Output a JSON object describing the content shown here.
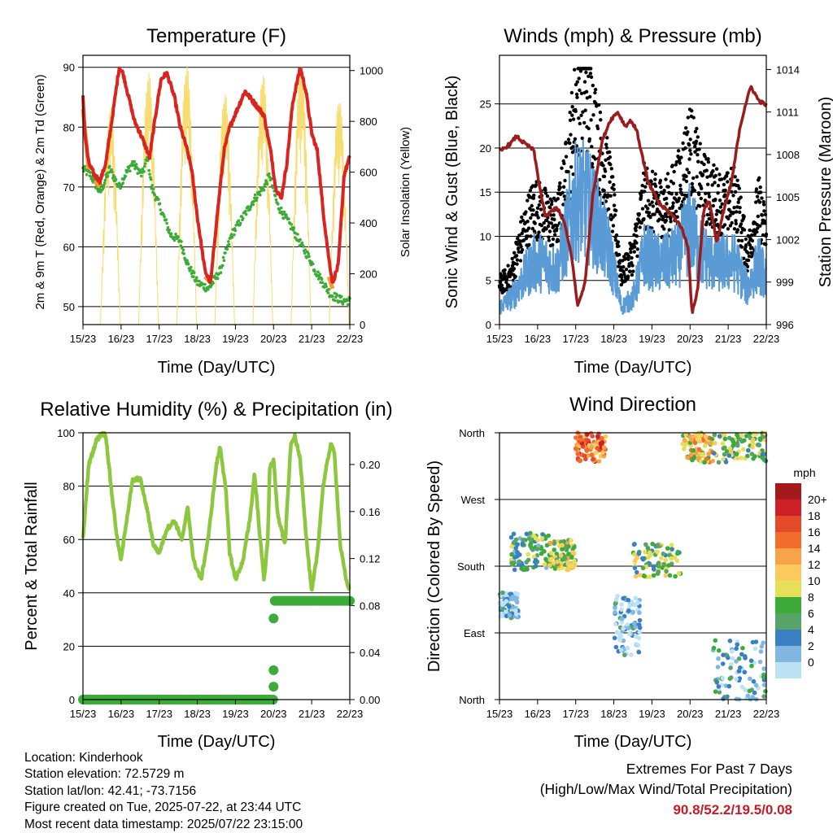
{
  "shared": {
    "x_ticks": [
      "15/23",
      "16/23",
      "17/23",
      "18/23",
      "19/23",
      "20/23",
      "21/23",
      "22/23"
    ],
    "xlabel": "Time (Day/UTC)"
  },
  "chart_data": [
    {
      "type": "line",
      "title": "Temperature (F)",
      "ylabel": "2m & 9m T (Red, Orange) & 2m Td (Green)",
      "y2label": "Solar Insolation (Yellow)",
      "xlabel": "Time (Day/UTC)",
      "x": [
        "15/23",
        "16/23",
        "17/23",
        "18/23",
        "19/23",
        "20/23",
        "21/23",
        "22/23"
      ],
      "ylim": [
        47,
        92
      ],
      "y2lim": [
        0,
        1060
      ],
      "yticks": [
        50,
        60,
        70,
        80,
        90
      ],
      "y2ticks": [
        0,
        200,
        400,
        600,
        800,
        1000
      ],
      "series": [
        {
          "axis": "left",
          "color": "#d8251f",
          "style": "thick-line",
          "x": [
            0,
            0.05,
            0.15,
            0.3,
            0.45,
            0.6,
            0.8,
            0.95,
            1.05,
            1.2,
            1.35,
            1.5,
            1.75,
            1.95,
            2.05,
            2.2,
            2.4,
            2.55,
            2.7,
            2.85,
            3,
            3.2,
            3.35,
            3.5,
            3.7,
            3.85,
            4.05,
            4.25,
            4.5,
            4.75,
            4.95,
            5.05,
            5.2,
            5.35,
            5.5,
            5.7,
            5.85,
            6,
            6.15,
            6.3,
            6.45,
            6.55,
            6.7,
            6.85,
            7
          ],
          "values": [
            85,
            79,
            74,
            72,
            71,
            74,
            83,
            90,
            89,
            85,
            81,
            79,
            75,
            84,
            88,
            89,
            85,
            80,
            77,
            73,
            65,
            56,
            54,
            64,
            76,
            80,
            83,
            86,
            84,
            82,
            75,
            70,
            68,
            74,
            84,
            90,
            86,
            79,
            76,
            66,
            58,
            54,
            57,
            72,
            75
          ]
        },
        {
          "axis": "left",
          "color": "#f39a2e",
          "style": "thick-line",
          "x": [
            0,
            0.15,
            0.3,
            0.45,
            3.2,
            3.35,
            6.45,
            6.55
          ],
          "values": [
            83,
            73,
            71,
            70,
            55,
            54,
            55,
            53
          ]
        },
        {
          "axis": "left",
          "color": "#3cab3a",
          "style": "dots",
          "x": [
            0,
            0.2,
            0.45,
            0.7,
            0.95,
            1.1,
            1.3,
            1.55,
            1.7,
            1.8,
            2.0,
            2.3,
            2.55,
            2.75,
            3.0,
            3.3,
            3.6,
            3.9,
            4.2,
            4.5,
            4.75,
            4.9,
            5.1,
            5.3,
            5.5,
            5.75,
            5.95,
            6.1,
            6.3,
            6.5,
            6.8,
            7
          ],
          "values": [
            73,
            72,
            69,
            73,
            70,
            72,
            74,
            72,
            75,
            70,
            67,
            62,
            61,
            57,
            54,
            53,
            56,
            62,
            65,
            68,
            70,
            72,
            67,
            65,
            63,
            60,
            58,
            56,
            54,
            52,
            51,
            51
          ]
        },
        {
          "axis": "right",
          "color": "#f7dc6f",
          "style": "daily-peaks",
          "peak_x": [
            0.72,
            1.72,
            2.72,
            3.72,
            4.72,
            5.72,
            6.72
          ],
          "peak_values": [
            860,
            1000,
            1030,
            920,
            1000,
            1040,
            900
          ]
        }
      ]
    },
    {
      "type": "scatter",
      "title": "Winds (mph) & Pressure (mb)",
      "ylabel": "Sonic Wind & Gust (Blue, Black)",
      "y2label": "Station Pressure (Maroon)",
      "xlabel": "Time (Day/UTC)",
      "x": [
        "15/23",
        "16/23",
        "17/23",
        "18/23",
        "19/23",
        "20/23",
        "21/23",
        "22/23"
      ],
      "ylim": [
        0,
        30.5
      ],
      "y2lim": [
        996,
        1015
      ],
      "yticks": [
        0,
        5,
        10,
        15,
        20,
        25
      ],
      "y2ticks": [
        996,
        999,
        1002,
        1005,
        1008,
        1011,
        1014
      ],
      "series": [
        {
          "axis": "left",
          "color": "#000000",
          "style": "dots",
          "x": [
            0,
            0.3,
            0.6,
            0.9,
            1.2,
            1.5,
            1.8,
            2.0,
            2.2,
            2.4,
            2.6,
            2.9,
            3.2,
            3.5,
            3.8,
            4.1,
            4.4,
            4.7,
            5.0,
            5.3,
            5.6,
            5.9,
            6.2,
            6.5,
            6.8,
            7
          ],
          "values": [
            4,
            5,
            9,
            12,
            11,
            10,
            16,
            22,
            25,
            22,
            18,
            14,
            5,
            7,
            13,
            12,
            12,
            14,
            18,
            14,
            13,
            12,
            13,
            7,
            12,
            9
          ]
        },
        {
          "axis": "left",
          "color": "#5a9bd5",
          "style": "filled-line",
          "x": [
            0,
            0.3,
            0.6,
            0.9,
            1.2,
            1.5,
            1.8,
            2.0,
            2.2,
            2.4,
            2.6,
            2.9,
            3.2,
            3.5,
            3.8,
            4.1,
            4.4,
            4.7,
            5.0,
            5.3,
            5.6,
            5.9,
            6.2,
            6.5,
            6.8,
            7
          ],
          "values": [
            2,
            3,
            5,
            7,
            7,
            6,
            11,
            14,
            14,
            13,
            11,
            8,
            2,
            3,
            8,
            7,
            7,
            8,
            11,
            8,
            7,
            7,
            7,
            4,
            7,
            5
          ]
        },
        {
          "axis": "right",
          "color": "#9b1c1c",
          "style": "thick-line",
          "x": [
            0,
            0.3,
            0.45,
            0.6,
            0.9,
            1.05,
            1.2,
            1.5,
            1.7,
            1.9,
            2.05,
            2.25,
            2.45,
            2.7,
            2.9,
            3.1,
            3.3,
            3.45,
            3.6,
            3.9,
            4.2,
            4.5,
            4.75,
            4.95,
            5.05,
            5.2,
            5.35,
            5.5,
            5.7,
            5.9,
            6.1,
            6.3,
            6.45,
            6.6,
            6.8,
            7
          ],
          "values": [
            1008.2,
            1008.8,
            1009.3,
            1008.9,
            1008.3,
            1005.8,
            1003.6,
            1004.3,
            1003.2,
            1000.7,
            997.3,
            999,
            1005.2,
            1009,
            1010.4,
            1011,
            1010,
            1010.4,
            1009.7,
            1006,
            1004.5,
            1003.8,
            1003,
            1001.5,
            996.7,
            998.5,
            1004,
            1004.8,
            1001.8,
            1004.2,
            1006.2,
            1009.8,
            1011.5,
            1012.8,
            1011.8,
            1011.5
          ]
        }
      ]
    },
    {
      "type": "line",
      "title": "Relative Humidity (%) & Precipitation (in)",
      "ylabel": "Percent & Total Rainfall",
      "xlabel": "Time (Day/UTC)",
      "x": [
        "15/23",
        "16/23",
        "17/23",
        "18/23",
        "19/23",
        "20/23",
        "21/23",
        "22/23"
      ],
      "ylim": [
        0,
        100
      ],
      "y2lim": [
        0,
        0.227
      ],
      "yticks": [
        0,
        20,
        40,
        60,
        80,
        100
      ],
      "y2ticks": [
        0.0,
        0.04,
        0.08,
        0.12,
        0.16,
        0.2
      ],
      "series": [
        {
          "axis": "left",
          "color": "#8dc63f",
          "style": "thick-line",
          "x": [
            0,
            0.15,
            0.35,
            0.5,
            0.6,
            0.75,
            0.9,
            1.0,
            1.1,
            1.3,
            1.5,
            1.7,
            1.85,
            2.0,
            2.2,
            2.4,
            2.6,
            2.75,
            2.9,
            3.1,
            3.3,
            3.5,
            3.6,
            3.75,
            3.85,
            4.0,
            4.2,
            4.4,
            4.5,
            4.65,
            4.75,
            4.85,
            4.9,
            5.0,
            5.1,
            5.3,
            5.45,
            5.55,
            5.7,
            5.85,
            6.0,
            6.15,
            6.3,
            6.5,
            6.6,
            6.75,
            6.9,
            7
          ],
          "values": [
            60,
            88,
            97,
            100,
            99,
            78,
            60,
            52,
            63,
            82,
            83,
            70,
            58,
            55,
            64,
            67,
            60,
            72,
            52,
            45,
            62,
            88,
            95,
            78,
            55,
            45,
            52,
            70,
            85,
            60,
            45,
            60,
            87,
            90,
            70,
            58,
            95,
            99,
            90,
            62,
            40,
            55,
            80,
            96,
            92,
            58,
            45,
            41
          ]
        },
        {
          "axis": "right",
          "color": "#3cab3a",
          "style": "dots",
          "x": [
            0,
            5,
            5.1,
            5.3,
            6,
            7
          ],
          "values": [
            0,
            0,
            0.069,
            0.084,
            0.084,
            0.084
          ]
        }
      ]
    },
    {
      "type": "scatter",
      "title": "Wind Direction",
      "ylabel": "Direction (Colored By Speed)",
      "xlabel": "Time (Day/UTC)",
      "x": [
        "15/23",
        "16/23",
        "17/23",
        "18/23",
        "19/23",
        "20/23",
        "21/23",
        "22/23"
      ],
      "yticks": [
        "North",
        "East",
        "South",
        "West",
        "North"
      ],
      "ylim": [
        0,
        360
      ],
      "legend": {
        "title": "mph",
        "labels": [
          "20+",
          "18",
          "16",
          "14",
          "12",
          "10",
          "8",
          "6",
          "4",
          "2",
          "0"
        ],
        "position": "right"
      },
      "clusters": [
        {
          "x": [
            0.0,
            0.5
          ],
          "dir": [
            110,
            145
          ],
          "speed": 2
        },
        {
          "x": [
            0.3,
            1.3
          ],
          "dir": [
            175,
            225
          ],
          "speed": 6
        },
        {
          "x": [
            1.3,
            2.0
          ],
          "dir": [
            175,
            215
          ],
          "speed": 10
        },
        {
          "x": [
            2.0,
            2.8
          ],
          "dir": [
            320,
            360
          ],
          "speed": 16
        },
        {
          "x": [
            3.0,
            3.7
          ],
          "dir": [
            60,
            140
          ],
          "speed": 2
        },
        {
          "x": [
            3.5,
            4.8
          ],
          "dir": [
            165,
            210
          ],
          "speed": 8
        },
        {
          "x": [
            4.8,
            5.6
          ],
          "dir": [
            320,
            360
          ],
          "speed": 12
        },
        {
          "x": [
            5.6,
            7.0
          ],
          "dir": [
            0,
            80
          ],
          "speed": 4
        },
        {
          "x": [
            5.6,
            7.0
          ],
          "dir": [
            320,
            360
          ],
          "speed": 8
        }
      ]
    }
  ],
  "colorbar": {
    "title": "mph",
    "labels": [
      "20+",
      "18",
      "16",
      "14",
      "12",
      "10",
      "8",
      "6",
      "4",
      "2",
      "0"
    ],
    "colors": [
      "#a5191d",
      "#cd2026",
      "#e44a2a",
      "#f26c2c",
      "#f8a24a",
      "#fcc95d",
      "#e6df58",
      "#3cab3a",
      "#58a467",
      "#3b7fc3",
      "#80b8e2",
      "#bde2f6"
    ]
  },
  "info": {
    "location": "Location: Kinderhook",
    "elevation": "Station elevation: 72.5729 m",
    "latlon": "Station lat/lon: 42.41; -73.7156",
    "created": "Figure created on Tue, 2025-07-22, at 23:44 UTC",
    "timestamp": "Most recent data timestamp: 2025/07/22 23:15:00"
  },
  "extremes": {
    "title": "Extremes For Past 7 Days",
    "subtitle": "(High/Low/Max Wind/Total Precipitation)",
    "values": "90.8/52.2/19.5/0.08"
  }
}
